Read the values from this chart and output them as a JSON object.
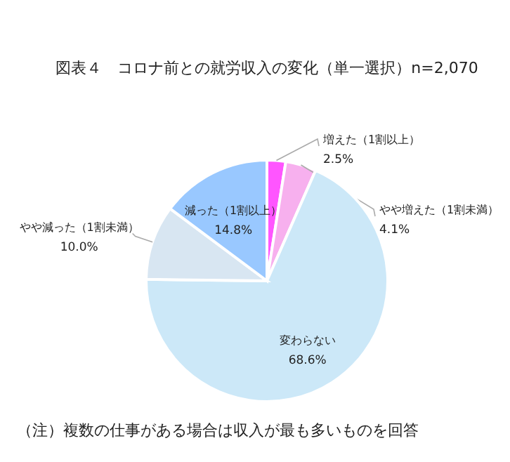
{
  "chart_data": {
    "type": "pie",
    "title": "図表４　コロナ前との就労収入の変化（単一選択）n=2,070",
    "categories": [
      "増えた（1割以上）",
      "やや増えた（1割未満）",
      "変わらない",
      "やや減った（1割未満）",
      "減った（1割以上）"
    ],
    "values": [
      2.5,
      4.1,
      68.6,
      10.0,
      14.8
    ],
    "colors": [
      "#ff55ff",
      "#f7b0ee",
      "#cce8f8",
      "#d8e6f2",
      "#99c8ff"
    ],
    "value_labels": [
      "2.5%",
      "4.1%",
      "68.6%",
      "10.0%",
      "14.8%"
    ],
    "annotations": [
      "（注）複数の仕事がある場合は収入が最も多いものを回答"
    ],
    "legend": false
  }
}
